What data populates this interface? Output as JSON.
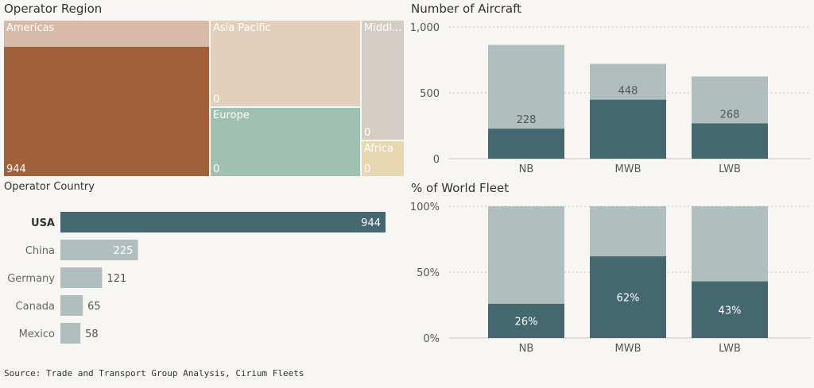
{
  "titles": {
    "region": "Operator Region",
    "country": "Operator Country",
    "aircraft": "Number of Aircraft",
    "fleet": "% of World Fleet"
  },
  "source": "Source: Trade and Transport Group Analysis, Cirium Fleets",
  "colors": {
    "dark": "#456870",
    "light": "#b0bebe",
    "americas_header": "#d8baa8",
    "americas": "#a0603a",
    "asia_pacific": "#e2d0bc",
    "middle_east": "#d4cdc6",
    "europe": "#a0c0b2",
    "africa": "#e8d8b0"
  },
  "chart_data": [
    {
      "type": "treemap",
      "title": "Operator Region",
      "items": [
        {
          "label": "Americas",
          "value": 944
        },
        {
          "label": "Asia Pacific",
          "value": 0
        },
        {
          "label": "Middl...",
          "value": 0
        },
        {
          "label": "Europe",
          "value": 0
        },
        {
          "label": "Africa",
          "value": 0
        }
      ]
    },
    {
      "type": "bar",
      "orientation": "horizontal",
      "title": "Operator Country",
      "categories": [
        "USA",
        "China",
        "Germany",
        "Canada",
        "Mexico"
      ],
      "values": [
        944,
        225,
        121,
        65,
        58
      ],
      "highlight": "USA",
      "xlim": [
        0,
        944
      ]
    },
    {
      "type": "bar",
      "stacked": true,
      "title": "Number of Aircraft",
      "categories": [
        "NB",
        "MWB",
        "LWB"
      ],
      "series": [
        {
          "values": [
            228,
            448,
            268
          ],
          "color": "dark"
        },
        {
          "values": [
            636,
            272,
            356
          ],
          "color": "light"
        }
      ],
      "data_labels": [
        "228",
        "448",
        "268"
      ],
      "yticks": [
        "0",
        "500",
        "1,000"
      ],
      "ylim": [
        0,
        1000
      ],
      "grid": true
    },
    {
      "type": "bar",
      "stacked": true,
      "title": "% of World Fleet",
      "categories": [
        "NB",
        "MWB",
        "LWB"
      ],
      "series": [
        {
          "values": [
            26,
            62,
            43
          ],
          "color": "dark"
        },
        {
          "values": [
            74,
            38,
            57
          ],
          "color": "light"
        }
      ],
      "data_labels": [
        "26%",
        "62%",
        "43%"
      ],
      "yticks": [
        "0%",
        "50%",
        "100%"
      ],
      "ylim": [
        0,
        100
      ],
      "grid": true
    }
  ]
}
